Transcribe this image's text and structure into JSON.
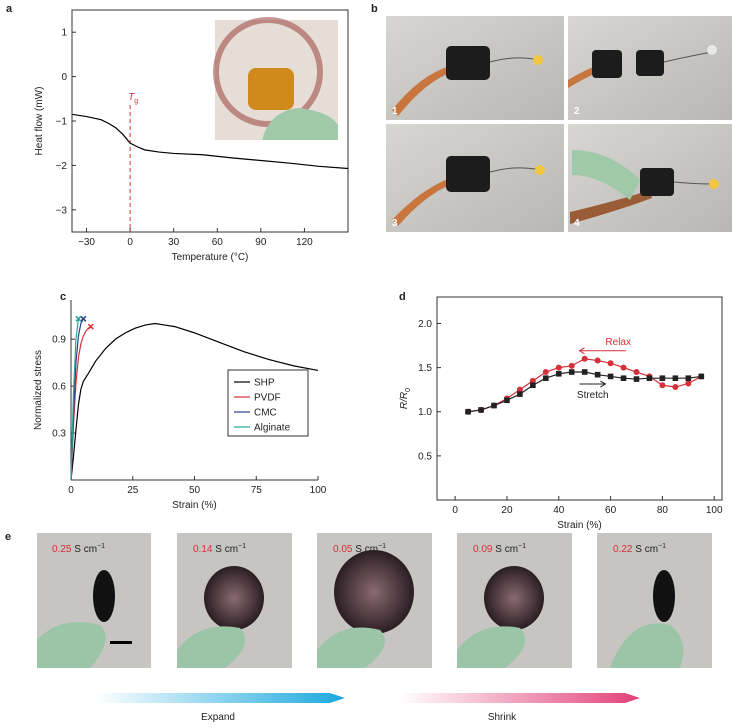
{
  "panel_labels": [
    "a",
    "b",
    "c",
    "d",
    "e"
  ],
  "chart_data": [
    {
      "type": "line",
      "xlabel": "Temperature (°C)",
      "ylabel": "Heat flow (mW)",
      "x": [
        -40,
        -30,
        -20,
        -15,
        -10,
        -5,
        0,
        5,
        10,
        20,
        30,
        50,
        70,
        90,
        110,
        130,
        150
      ],
      "values": [
        -0.85,
        -0.9,
        -0.97,
        -1.05,
        -1.15,
        -1.3,
        -1.5,
        -1.58,
        -1.65,
        -1.7,
        -1.73,
        -1.76,
        -1.83,
        -1.89,
        -1.95,
        -2.02,
        -2.07
      ],
      "color": "#000000",
      "annotation": {
        "text": "T",
        "sub": "g",
        "x": 0,
        "color": "#d6303a"
      },
      "xlim": [
        -40,
        150
      ],
      "ylim": [
        -3.5,
        1.5
      ],
      "xticks": [
        {
          "value": -30,
          "label": "−30"
        },
        0,
        30,
        60,
        90,
        120
      ],
      "yticks": [
        1,
        0,
        {
          "value": -1,
          "label": "−1"
        },
        {
          "value": -2,
          "label": "−2"
        },
        {
          "value": -3,
          "label": "−3"
        }
      ]
    },
    {
      "type": "line",
      "xlabel": "Strain (%)",
      "ylabel": "Normalized stress",
      "series": [
        {
          "name": "SHP",
          "color": "#000000",
          "x": [
            0,
            1,
            2,
            3,
            4,
            5,
            7,
            10,
            14,
            18,
            22,
            26,
            30,
            34,
            38,
            42,
            50,
            60,
            70,
            80,
            90,
            100
          ],
          "values": [
            0,
            0.15,
            0.32,
            0.48,
            0.58,
            0.63,
            0.68,
            0.76,
            0.84,
            0.9,
            0.94,
            0.97,
            0.99,
            1.0,
            0.99,
            0.98,
            0.94,
            0.88,
            0.82,
            0.77,
            0.73,
            0.7
          ]
        },
        {
          "name": "PVDF",
          "color": "#d6303a",
          "marker": "x",
          "x": [
            0,
            1,
            2,
            3,
            4,
            5,
            6,
            7,
            8
          ],
          "values": [
            0,
            0.35,
            0.62,
            0.78,
            0.87,
            0.92,
            0.95,
            0.97,
            0.98
          ]
        },
        {
          "name": "CMC",
          "color": "#2b3f8c",
          "marker": "x",
          "x": [
            0,
            1,
            2,
            3,
            4,
            5
          ],
          "values": [
            0,
            0.42,
            0.75,
            0.92,
            1.0,
            1.03
          ]
        },
        {
          "name": "Alginate",
          "color": "#2aa39a",
          "marker": "x",
          "x": [
            0,
            1,
            2,
            3
          ],
          "values": [
            0,
            0.55,
            0.9,
            1.03
          ]
        }
      ],
      "xlim": [
        0,
        100
      ],
      "ylim": [
        0,
        1.15
      ],
      "xticks": [
        0,
        25,
        50,
        75,
        100
      ],
      "yticks": [
        0.3,
        0.6,
        0.9
      ]
    },
    {
      "type": "line",
      "xlabel": "Strain (%)",
      "ylabel": {
        "text": "R/R",
        "sub": "0"
      },
      "series": [
        {
          "name": "Relax",
          "color": "#d6303a",
          "marker": "circle",
          "x": [
            5,
            10,
            15,
            20,
            25,
            30,
            35,
            40,
            45,
            50,
            55,
            60,
            65,
            70,
            75,
            80,
            85,
            90,
            95
          ],
          "values": [
            1.0,
            1.02,
            1.07,
            1.15,
            1.25,
            1.35,
            1.45,
            1.5,
            1.52,
            1.6,
            1.58,
            1.55,
            1.5,
            1.45,
            1.4,
            1.3,
            1.28,
            1.32,
            1.4
          ]
        },
        {
          "name": "Stretch",
          "color": "#222222",
          "marker": "square",
          "x": [
            5,
            10,
            15,
            20,
            25,
            30,
            35,
            40,
            45,
            50,
            55,
            60,
            65,
            70,
            75,
            80,
            85,
            90,
            95
          ],
          "values": [
            1.0,
            1.02,
            1.07,
            1.13,
            1.2,
            1.3,
            1.38,
            1.43,
            1.45,
            1.45,
            1.42,
            1.4,
            1.38,
            1.37,
            1.38,
            1.38,
            1.38,
            1.38,
            1.4
          ]
        }
      ],
      "xlim": [
        -7,
        103
      ],
      "ylim": [
        0,
        2.3
      ],
      "xticks": [
        0,
        20,
        40,
        60,
        80,
        100
      ],
      "yticks": [
        0.5,
        {
          "value": 1.0,
          "label": "1.0"
        },
        1.5,
        {
          "value": 2.0,
          "label": "2.0"
        }
      ]
    }
  ],
  "panel_b": {
    "photos": [
      "1",
      "2",
      "3",
      "4"
    ]
  },
  "panel_e": {
    "conductivities": [
      {
        "value": "0.25",
        "unit": "S cm",
        "power": "−1"
      },
      {
        "value": "0.14",
        "unit": "S cm",
        "power": "−1"
      },
      {
        "value": "0.05",
        "unit": "S cm",
        "power": "−1"
      },
      {
        "value": "0.09",
        "unit": "S cm",
        "power": "−1"
      },
      {
        "value": "0.22",
        "unit": "S cm",
        "power": "−1"
      }
    ],
    "arrows": [
      "Expand",
      "Shrink"
    ]
  }
}
